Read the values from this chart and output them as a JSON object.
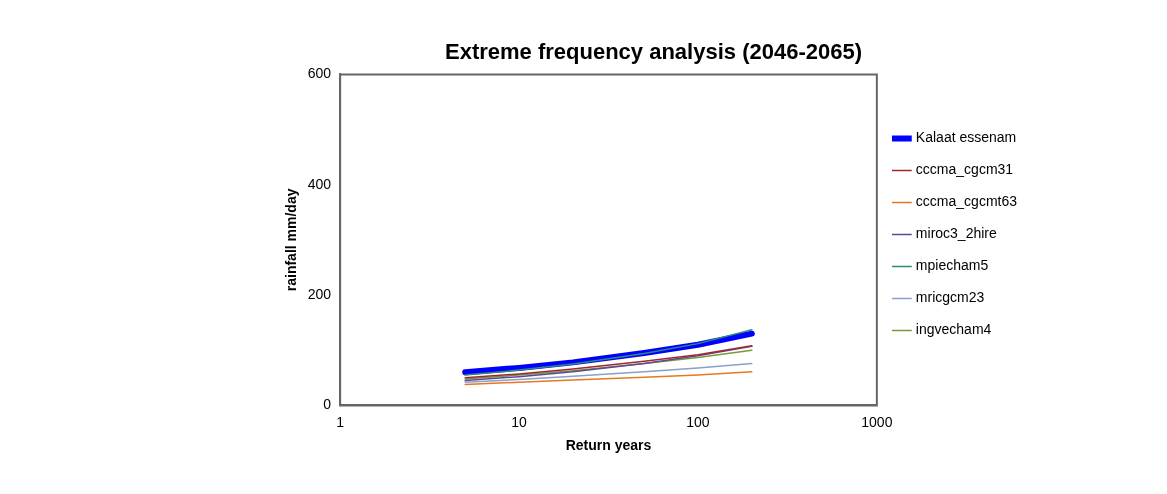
{
  "chart_data": {
    "type": "line",
    "title": "Extreme frequency analysis (2046-2065)",
    "xlabel": "Return years",
    "ylabel": "rainfall mm/day",
    "x": [
      5,
      10,
      20,
      50,
      100,
      200
    ],
    "series": [
      {
        "name": "Kalaat essenam",
        "color": "#0000ff",
        "values": [
          60,
          68,
          78,
          95,
          110,
          130
        ]
      },
      {
        "name": "cccma_cgcm31",
        "color": "#a0282d",
        "values": [
          50,
          57,
          66,
          80,
          92,
          108
        ]
      },
      {
        "name": "cccma_cgcmt63",
        "color": "#e87722",
        "values": [
          38,
          42,
          46,
          51,
          55,
          61
        ]
      },
      {
        "name": "miroc3_2hire",
        "color": "#5b4a9b",
        "values": [
          45,
          52,
          61,
          76,
          90,
          107
        ]
      },
      {
        "name": "mpiecham5",
        "color": "#2e8b7a",
        "values": [
          55,
          64,
          75,
          94,
          112,
          137
        ]
      },
      {
        "name": "mricgcm23",
        "color": "#8aa0c8",
        "values": [
          42,
          47,
          53,
          61,
          68,
          76
        ]
      },
      {
        "name": "ingvecham4",
        "color": "#7a9a3a",
        "values": [
          48,
          55,
          63,
          76,
          87,
          100
        ]
      }
    ],
    "xlim": [
      1,
      1000
    ],
    "xticks": [
      1,
      10,
      100,
      1000
    ],
    "ylim": [
      0,
      600
    ],
    "yticks": [
      0,
      200,
      400,
      600
    ],
    "log": "x",
    "grid": false,
    "legend": "right",
    "marker": "none",
    "line_style": "solid"
  }
}
